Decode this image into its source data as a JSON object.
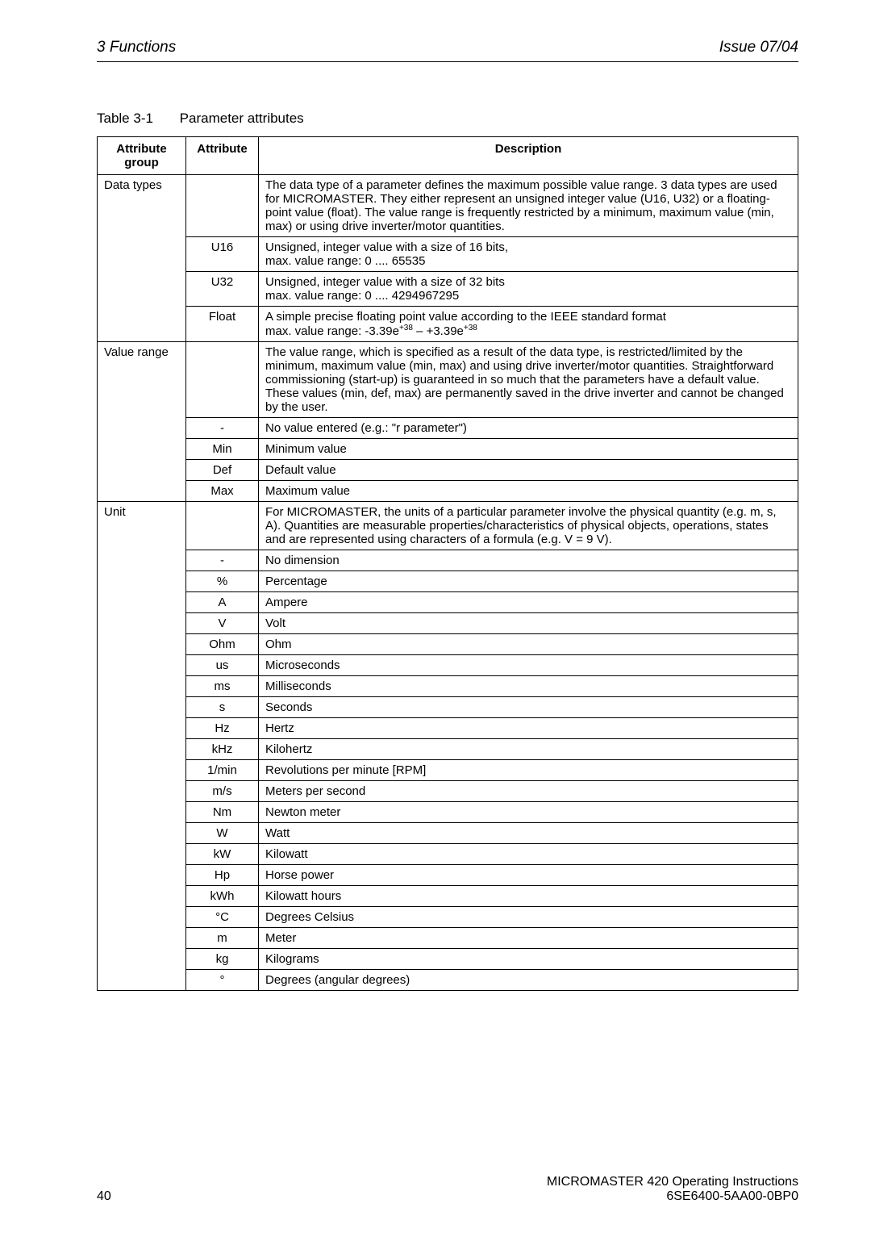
{
  "header": {
    "left": "3  Functions",
    "right": "Issue 07/04"
  },
  "caption": {
    "num": "Table 3-1",
    "title": "Parameter attributes"
  },
  "columns": {
    "c1": "Attribute group",
    "c2": "Attribute",
    "c3": "Description"
  },
  "groups": {
    "dataTypes": {
      "label": "Data types",
      "rows": [
        {
          "attr": "",
          "desc": "The data type of a parameter defines the maximum possible value range. 3 data types are used for MICROMASTER. They either represent an unsigned integer value (U16, U32) or a floating-point value (float). The value range is frequently restricted by a minimum, maximum value (min, max) or using drive inverter/motor quantities."
        },
        {
          "attr": "U16",
          "desc": "Unsigned, integer value with a size of 16 bits,\nmax. value range: 0 .... 65535"
        },
        {
          "attr": "U32",
          "desc": "Unsigned, integer value with a size of 32 bits\nmax. value range: 0 .... 4294967295"
        },
        {
          "attr": "Float",
          "descHtml": "A simple precise floating point value according to the IEEE standard format<br>max. value range: -3.39e<sup>+38</sup> – +3.39e<sup>+38</sup>"
        }
      ]
    },
    "valueRange": {
      "label": "Value range",
      "rows": [
        {
          "attr": "",
          "desc": "The value range, which is specified as a result of the data type, is restricted/limited by the minimum, maximum value (min, max) and using drive inverter/motor quantities. Straightforward commissioning (start-up) is guaranteed in so much that the parameters have a default value. These values (min, def, max) are permanently saved in the drive inverter and cannot be changed by the user."
        },
        {
          "attr": "-",
          "desc": "No value entered (e.g.: \"r parameter\")"
        },
        {
          "attr": "Min",
          "desc": "Minimum value"
        },
        {
          "attr": "Def",
          "desc": "Default value"
        },
        {
          "attr": "Max",
          "desc": "Maximum value"
        }
      ]
    },
    "unit": {
      "label": "Unit",
      "rows": [
        {
          "attr": "",
          "desc": "For MICROMASTER, the units of a particular parameter involve the physical quantity (e.g. m, s, A). Quantities are measurable properties/characteristics of physical objects, operations, states and are represented using characters of a formula (e.g. V = 9 V)."
        },
        {
          "attr": "-",
          "desc": "No dimension"
        },
        {
          "attr": "%",
          "desc": "Percentage"
        },
        {
          "attr": "A",
          "desc": "Ampere"
        },
        {
          "attr": "V",
          "desc": "Volt"
        },
        {
          "attr": "Ohm",
          "desc": "Ohm"
        },
        {
          "attr": "us",
          "desc": "Microseconds"
        },
        {
          "attr": "ms",
          "desc": "Milliseconds"
        },
        {
          "attr": "s",
          "desc": "Seconds"
        },
        {
          "attr": "Hz",
          "desc": "Hertz"
        },
        {
          "attr": "kHz",
          "desc": "Kilohertz"
        },
        {
          "attr": "1/min",
          "desc": "Revolutions per minute [RPM]"
        },
        {
          "attr": "m/s",
          "desc": "Meters per second"
        },
        {
          "attr": "Nm",
          "desc": "Newton meter"
        },
        {
          "attr": "W",
          "desc": "Watt"
        },
        {
          "attr": "kW",
          "desc": "Kilowatt"
        },
        {
          "attr": "Hp",
          "desc": "Horse power"
        },
        {
          "attr": "kWh",
          "desc": "Kilowatt hours"
        },
        {
          "attr": "°C",
          "desc": "Degrees Celsius"
        },
        {
          "attr": "m",
          "desc": "Meter"
        },
        {
          "attr": "kg",
          "desc": "Kilograms"
        },
        {
          "attr": "°",
          "desc": "Degrees (angular degrees)"
        }
      ]
    }
  },
  "footer": {
    "page": "40",
    "r1": "MICROMASTER 420    Operating Instructions",
    "r2": "6SE6400-5AA00-0BP0"
  }
}
